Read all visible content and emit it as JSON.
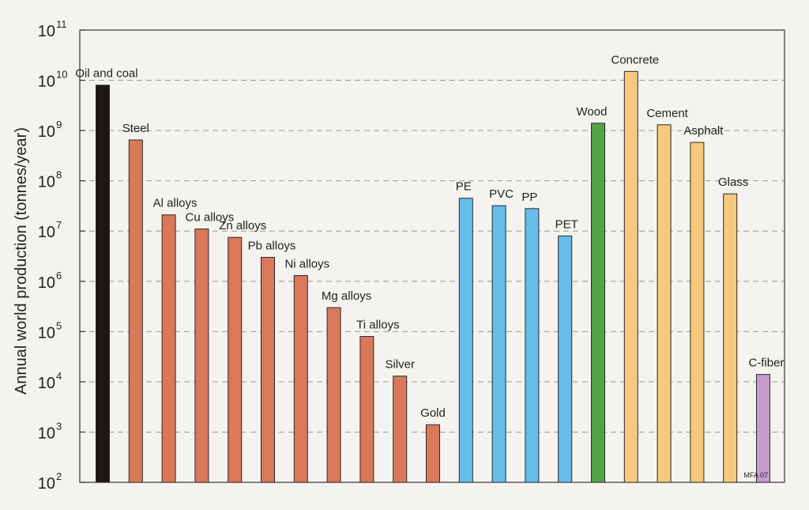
{
  "chart_data": {
    "type": "bar",
    "title": "",
    "xlabel": "",
    "ylabel": "Annual world production (tonnes/year)",
    "yscale": "log",
    "ylim": [
      100,
      100000000000
    ],
    "grid": "horizontal dashed",
    "y_ticks": [
      {
        "base": "10",
        "exp": "2"
      },
      {
        "base": "10",
        "exp": "3"
      },
      {
        "base": "10",
        "exp": "4"
      },
      {
        "base": "10",
        "exp": "5"
      },
      {
        "base": "10",
        "exp": "6"
      },
      {
        "base": "10",
        "exp": "7"
      },
      {
        "base": "10",
        "exp": "8"
      },
      {
        "base": "10",
        "exp": "9"
      },
      {
        "base": "10",
        "exp": "10"
      },
      {
        "base": "10",
        "exp": "11"
      }
    ],
    "categories": [
      "Oil and coal",
      "Steel",
      "Al alloys",
      "Cu alloys",
      "Zn alloys",
      "Pb alloys",
      "Ni alloys",
      "Mg alloys",
      "Ti alloys",
      "Silver",
      "Gold",
      "PE",
      "PVC",
      "PP",
      "PET",
      "Wood",
      "Concrete",
      "Cement",
      "Asphalt",
      "Glass",
      "C-fiber"
    ],
    "values": [
      8000000000,
      650000000,
      21000000,
      11000000,
      7500000,
      3000000,
      1300000,
      300000,
      80000,
      13000,
      1400,
      45000000,
      32000000,
      28000000,
      8000000,
      1400000000,
      15000000000,
      1300000000,
      580000000,
      55000000,
      14000
    ],
    "colors": [
      "#1e1813",
      "#d9795a",
      "#d9795a",
      "#d9795a",
      "#d9795a",
      "#d9795a",
      "#d9795a",
      "#d9795a",
      "#d9795a",
      "#d9795a",
      "#d9795a",
      "#66bde9",
      "#66bde9",
      "#66bde9",
      "#66bde9",
      "#52a24a",
      "#f7c97e",
      "#f7c97e",
      "#f7c97e",
      "#f7c97e",
      "#c79ad0"
    ],
    "annotation": "MFA 07"
  }
}
